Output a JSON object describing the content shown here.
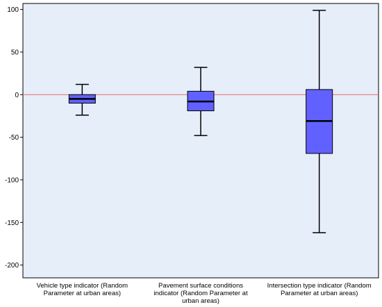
{
  "chart_data": {
    "type": "boxplot",
    "categories": [
      "Vehicle type indicator (Random Parameter at urban areas)",
      "Pavement surface conditions indicator (Random Parameter at urban areas)",
      "Intersection type indicator (Random Parameter at urban areas)"
    ],
    "boxes": [
      {
        "whisker_low": -24,
        "q1": -10,
        "median": -5,
        "q3": 0,
        "whisker_high": 12
      },
      {
        "whisker_low": -48,
        "q1": -19,
        "median": -8,
        "q3": 4,
        "whisker_high": 32
      },
      {
        "whisker_low": -162,
        "q1": -69,
        "median": -31,
        "q3": 6,
        "whisker_high": 99
      }
    ],
    "ylim": [
      -215,
      107
    ],
    "yticks": [
      100,
      50,
      0,
      -50,
      -100,
      -150,
      -200
    ],
    "reference_line": 0,
    "grid": false,
    "colors": {
      "plot_background": "#e5eef9",
      "box_fill": "#6161ff",
      "reference_line": "#e8686e",
      "lines": "#000000"
    }
  }
}
